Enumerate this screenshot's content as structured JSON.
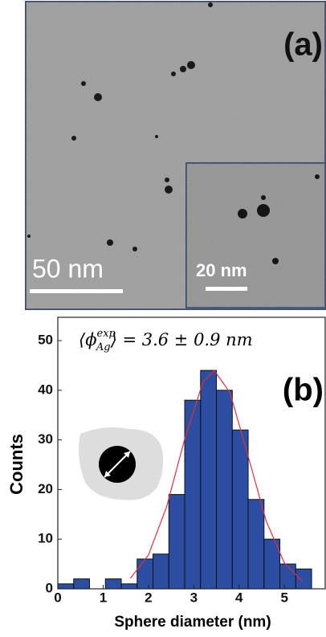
{
  "panel_a": {
    "label": "(a)",
    "scale_bar": "50 nm",
    "inset_scale_bar": "20 nm"
  },
  "chart_data": {
    "type": "histogram",
    "label": "(b)",
    "annotation": {
      "open": "⟨ϕ",
      "sup": "exp",
      "sub": "Ag",
      "close": "⟩ = 3.6 ± 0.9 nm"
    },
    "x_label": "Sphere diameter (nm)",
    "y_label": "Counts",
    "bins": [
      0,
      0.35,
      0.7,
      1.05,
      1.4,
      1.75,
      2.1,
      2.45,
      2.8,
      3.15,
      3.5,
      3.85,
      4.2,
      4.55,
      4.9,
      5.25,
      5.6
    ],
    "counts": [
      1,
      2,
      0,
      2,
      1,
      6,
      7,
      19,
      38,
      44,
      40,
      32,
      18,
      10,
      5,
      4
    ],
    "color": "#2b4ea2",
    "fit": {
      "color": "#e0303a",
      "x": [
        1.6,
        2.0,
        2.4,
        2.8,
        3.2,
        3.45,
        3.8,
        4.2,
        4.6,
        5.0,
        5.4
      ],
      "values": [
        2.1,
        6.8,
        16.5,
        30.2,
        41.6,
        44,
        39.5,
        26.7,
        13.6,
        5.2,
        1.5
      ]
    },
    "xlim": [
      0,
      5.9
    ],
    "ylim": [
      0,
      54.7
    ],
    "xticks": [
      0,
      1,
      2,
      3,
      4,
      5
    ],
    "yticks": [
      0,
      10,
      20,
      30,
      40,
      50
    ]
  }
}
